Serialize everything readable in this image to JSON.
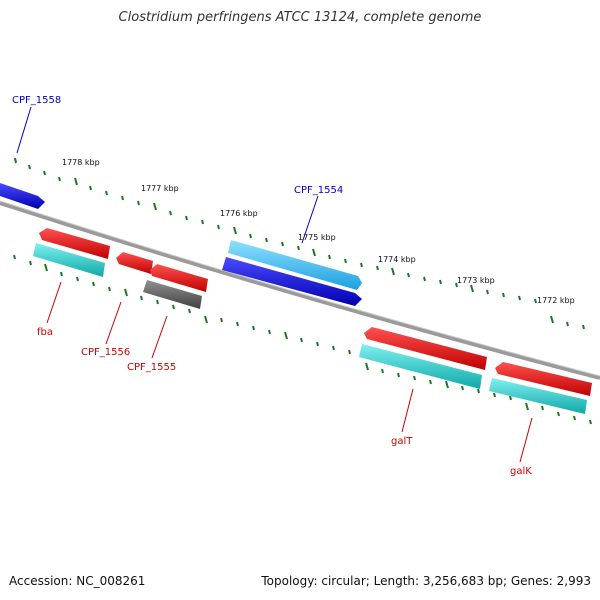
{
  "title": "Clostridium perfringens ATCC 13124, complete genome",
  "footer": {
    "accession": "Accession: NC_008261",
    "summary": "Topology: circular; Length: 3,256,683 bp; Genes: 2,993"
  },
  "scale_labels": [
    "1778 kbp",
    "1777 kbp",
    "1776 kbp",
    "1775 kbp",
    "1774 kbp",
    "1773 kbp",
    "1772 kbp"
  ],
  "genes": [
    {
      "name": "CPF_1558",
      "strand": "forward",
      "color": "#0000cc"
    },
    {
      "name": "CPF_1554",
      "strand": "forward",
      "color": "#0000cc"
    },
    {
      "name": "fba",
      "strand": "reverse",
      "color": "#cc0000"
    },
    {
      "name": "CPF_1556",
      "strand": "reverse",
      "color": "#cc0000"
    },
    {
      "name": "CPF_1555",
      "strand": "reverse",
      "color": "#cc0000"
    },
    {
      "name": "galT",
      "strand": "reverse",
      "color": "#cc0000"
    },
    {
      "name": "galK",
      "strand": "reverse",
      "color": "#cc0000"
    }
  ],
  "colors": {
    "forward_gene": "#1a1aee",
    "forward_gene_light": "#28b4f0",
    "reverse_gene": "#ee1111",
    "cds_cyan": "#20c4c4",
    "pseudo_gray": "#555555",
    "backbone": "#888888",
    "ticks": "#1a7a1a"
  }
}
